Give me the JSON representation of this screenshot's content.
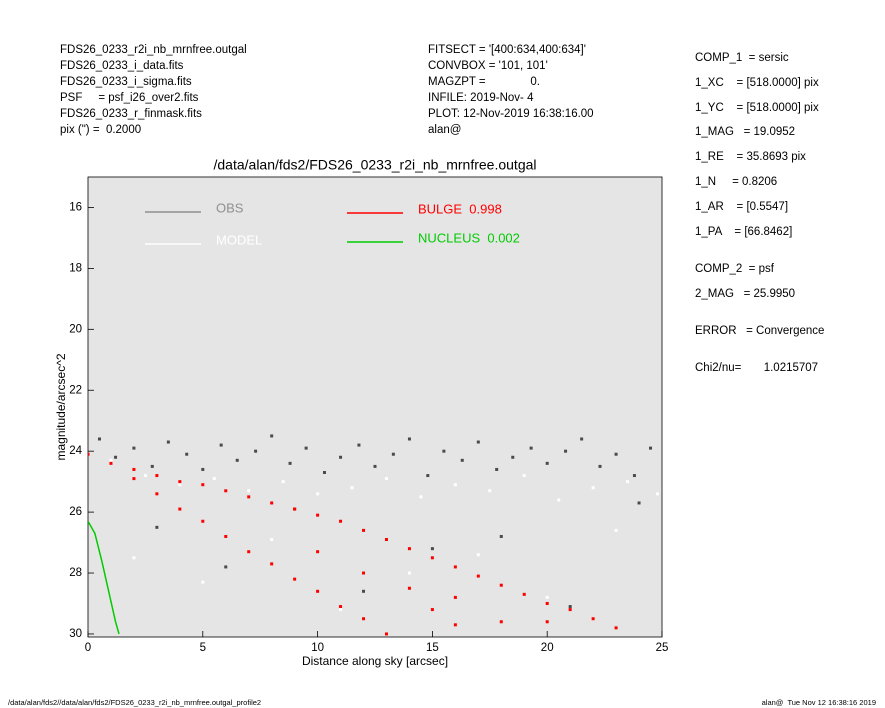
{
  "chart_data": {
    "type": "scatter",
    "title": "/data/alan/fds2/FDS26_0233_r2i_nb_mrnfree.outgal",
    "x_label": "Distance along sky [arcsec]",
    "y_label": "magnitude/arcsec^2",
    "info_left": [
      "FDS26_0233_r2i_nb_mrnfree.outgal",
      "FDS26_0233_i_data.fits",
      "FDS26_0233_i_sigma.fits",
      "PSF     = psf_i26_over2.fits",
      "FDS26_0233_r_finmask.fits",
      "pix (\") =  0.2000"
    ],
    "info_mid": [
      "FITSECT = '[400:634,400:634]'",
      "CONVBOX = '101, 101'",
      "MAGZPT =              0.",
      "INFILE: 2019-Nov- 4",
      "PLOT: 12-Nov-2019 16:38:16.00",
      "alan@"
    ],
    "info_right": [
      "COMP_1  = sersic",
      "1_XC    = [518.0000] pix",
      "1_YC    = [518.0000] pix",
      "1_MAG   = 19.0952",
      "1_RE    = 35.8693 pix",
      "1_N     = 0.8206",
      "1_AR    = [0.5547]",
      "1_PA    = [66.8462]",
      "COMP_2  = psf",
      "2_MAG   = 25.9950",
      "ERROR   = Convergence",
      "Chi2/nu=       1.0215707"
    ],
    "footer_left": "/data/alan/fds2//data/alan/fds2/FDS26_0233_r2i_nb_mrnfree.outgal_profile2",
    "footer_right": "alan@  Tue Nov 12 16:38:16 2019",
    "xlim": [
      0,
      25
    ],
    "xticks": [
      0,
      5,
      10,
      15,
      20,
      25
    ],
    "ylim": [
      30.1,
      15
    ],
    "yticks": [
      16,
      18,
      20,
      22,
      24,
      26,
      28,
      30
    ],
    "background": "#e5e5e5",
    "series": [
      {
        "name": "OBS",
        "color": "#4a4a4a",
        "legend_color": "#909090",
        "mode": "points",
        "x": [
          0.5,
          1.2,
          2,
          2.8,
          3.5,
          4.3,
          5,
          5.8,
          6.5,
          7.3,
          8,
          8.8,
          9.5,
          10.3,
          11,
          11.8,
          12.5,
          13.3,
          14,
          14.8,
          15.5,
          16.3,
          17,
          17.8,
          18.5,
          19.3,
          20,
          20.8,
          21.5,
          22.3,
          23,
          23.8,
          24.5,
          3,
          6,
          9,
          12,
          15,
          18,
          21,
          24
        ],
        "values": [
          23.6,
          24.2,
          23.9,
          24.5,
          23.7,
          24.1,
          24.6,
          23.8,
          24.3,
          24.0,
          23.5,
          24.4,
          23.9,
          24.7,
          24.2,
          23.8,
          24.5,
          24.1,
          23.6,
          24.8,
          24.0,
          24.3,
          23.7,
          24.6,
          24.2,
          23.9,
          24.4,
          24.0,
          23.6,
          24.5,
          24.1,
          24.8,
          23.9,
          26.5,
          27.8,
          25.9,
          28.6,
          27.2,
          26.8,
          29.1,
          25.7
        ]
      },
      {
        "name": "MODEL",
        "color": "#ffffff",
        "legend_color": "#ffffff",
        "mode": "points",
        "x": [
          1,
          2.5,
          4,
          5.5,
          7,
          8.5,
          10,
          11.5,
          13,
          14.5,
          16,
          17.5,
          19,
          20.5,
          22,
          23.5,
          24.8,
          2,
          5,
          8,
          11,
          14,
          17,
          20,
          23
        ],
        "values": [
          24.3,
          24.8,
          25.1,
          24.9,
          25.3,
          25.0,
          25.4,
          25.2,
          24.9,
          25.5,
          25.1,
          25.3,
          24.8,
          25.6,
          25.2,
          25.0,
          25.4,
          27.5,
          28.3,
          26.9,
          29.2,
          28.0,
          27.4,
          28.8,
          26.6
        ]
      },
      {
        "name": "BULGE  0.998",
        "color": "#ff0000",
        "legend_color": "#ff0000",
        "mode": "points",
        "x": [
          0,
          1,
          2,
          2,
          3,
          3,
          4,
          4,
          5,
          5,
          6,
          6,
          7,
          7,
          8,
          8,
          9,
          9,
          10,
          10,
          11,
          11,
          12,
          12,
          13,
          13,
          14,
          14,
          15,
          15,
          16,
          16,
          17,
          18,
          18,
          19,
          20,
          21,
          22,
          23,
          10,
          12,
          16,
          20
        ],
        "values": [
          24.1,
          24.4,
          24.6,
          24.9,
          24.8,
          25.4,
          25.0,
          25.9,
          25.1,
          26.3,
          25.3,
          26.8,
          25.5,
          27.3,
          25.7,
          27.7,
          25.9,
          28.2,
          26.1,
          28.6,
          26.3,
          29.1,
          26.6,
          29.5,
          26.9,
          30.0,
          27.2,
          28.5,
          27.5,
          29.2,
          27.8,
          29.7,
          28.1,
          28.4,
          29.6,
          28.7,
          29.0,
          29.2,
          29.5,
          29.8,
          27.3,
          28.0,
          28.8,
          29.6
        ]
      },
      {
        "name": "NUCLEUS  0.002",
        "color": "#00cc00",
        "legend_color": "#00cc00",
        "mode": "line",
        "x": [
          0,
          0.3,
          0.6,
          0.9,
          1.2,
          1.35
        ],
        "values": [
          26.3,
          26.7,
          27.6,
          28.6,
          29.6,
          30.0
        ]
      }
    ]
  }
}
